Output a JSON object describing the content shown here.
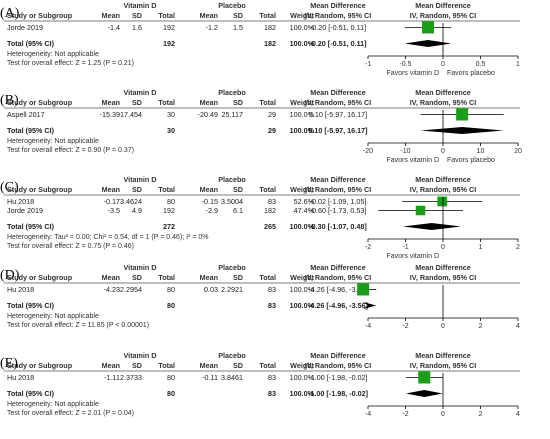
{
  "headers": {
    "vitd": "Vitamin D",
    "placebo": "Placebo",
    "md": "Mean Difference",
    "md2": "Mean Difference",
    "study": "Study or Subgroup",
    "mean": "Mean",
    "sd": "SD",
    "total": "Total",
    "weight": "Weight",
    "ci": "IV, Random, 95% CI",
    "ci2": "IV, Random, 95% CI"
  },
  "colors": {
    "square": "#1a9e1a",
    "diamond": "#000000",
    "green_mark": "#00b050"
  },
  "chart_data": [
    {
      "type": "forest",
      "label": "(A)",
      "studies": [
        {
          "name": "Jorde 2019",
          "vd_mean": "-1.4",
          "vd_sd": "1.6",
          "vd_total": "192",
          "pl_mean": "-1.2",
          "pl_sd": "1.5",
          "pl_total": "182",
          "weight": "100.0%",
          "ci_text": "-0.20 [-0.51, 0.11]",
          "md": -0.2,
          "lo": -0.51,
          "hi": 0.11,
          "w": 100
        }
      ],
      "total": {
        "label": "Total (95% CI)",
        "vd_total": "192",
        "pl_total": "182",
        "weight": "100.0%",
        "ci_text": "-0.20 [-0.51, 0.11]",
        "md": -0.2,
        "lo": -0.51,
        "hi": 0.11
      },
      "heterogeneity": "Heterogeneity: Not applicable",
      "overall": "Test for overall effect: Z = 1.25 (P = 0.21)",
      "axis": {
        "min": -1,
        "max": 1,
        "ticks": [
          "-1",
          "-0.5",
          "0",
          "0.5",
          "1"
        ]
      },
      "favors_left": "Favors vitamin D",
      "favors_right": "Favors placebo"
    },
    {
      "type": "forest",
      "label": "(B)",
      "studies": [
        {
          "name": "Aspell 2017",
          "vd_mean": "-15.39",
          "vd_sd": "17.454",
          "vd_total": "30",
          "pl_mean": "-20.49",
          "pl_sd": "25.117",
          "pl_total": "29",
          "weight": "100.0%",
          "ci_text": "5.10 [-5.97, 16.17]",
          "md": 5.1,
          "lo": -5.97,
          "hi": 16.17,
          "w": 100
        }
      ],
      "total": {
        "label": "Total (95% CI)",
        "vd_total": "30",
        "pl_total": "29",
        "weight": "100.0%",
        "ci_text": "5.10 [-5.97, 16.17]",
        "md": 5.1,
        "lo": -5.97,
        "hi": 16.17
      },
      "heterogeneity": "Heterogeneity: Not applicable",
      "overall": "Test for overall effect: Z = 0.90 (P = 0.37)",
      "axis": {
        "min": -20,
        "max": 20,
        "ticks": [
          "-20",
          "-10",
          "0",
          "10",
          "20"
        ]
      },
      "favors_left": "Favors vitamin D",
      "favors_right": "Favors placebo"
    },
    {
      "type": "forest",
      "label": "(C)",
      "studies": [
        {
          "name": "Hu 2018",
          "vd_mean": "-0.17",
          "vd_sd": "3.4624",
          "vd_total": "80",
          "pl_mean": "-0.15",
          "pl_sd": "3.5004",
          "pl_total": "83",
          "weight": "52.6%",
          "ci_text": "-0.02 [-1.09, 1.05]",
          "md": -0.02,
          "lo": -1.09,
          "hi": 1.05,
          "w": 52.6
        },
        {
          "name": "Jorde 2019",
          "vd_mean": "-3.5",
          "vd_sd": "4.9",
          "vd_total": "192",
          "pl_mean": "-2.9",
          "pl_sd": "6.1",
          "pl_total": "182",
          "weight": "47.4%",
          "ci_text": "-0.60 [-1.73, 0.53]",
          "md": -0.6,
          "lo": -1.73,
          "hi": 0.53,
          "w": 47.4
        }
      ],
      "total": {
        "label": "Total (95% CI)",
        "vd_total": "272",
        "pl_total": "265",
        "weight": "100.0%",
        "ci_text": "-0.30 [-1.07, 0.48]",
        "md": -0.3,
        "lo": -1.07,
        "hi": 0.48
      },
      "heterogeneity": "Heterogeneity: Tau² = 0.00; Chi² = 0.54, df = 1 (P = 0.46); I² = 0%",
      "overall": "Test for overall effect: Z = 0.75 (P = 0.46)",
      "axis": {
        "min": -2,
        "max": 2,
        "ticks": [
          "-2",
          "-1",
          "0",
          "1",
          "2"
        ]
      },
      "favors_left": "Favors vitamin D",
      "favors_right": ""
    },
    {
      "type": "forest",
      "label": "(D)",
      "studies": [
        {
          "name": "Hu 2018",
          "vd_mean": "-4.23",
          "vd_sd": "2.2954",
          "vd_total": "80",
          "pl_mean": "0.03",
          "pl_sd": "2.2921",
          "pl_total": "83",
          "weight": "100.0%",
          "ci_text": "-4.26 [-4.96, -3.56]",
          "md": -4.26,
          "lo": -4.96,
          "hi": -3.56,
          "w": 100
        }
      ],
      "total": {
        "label": "Total (95% CI)",
        "vd_total": "80",
        "pl_total": "83",
        "weight": "100.0%",
        "ci_text": "-4.26 [-4.96, -3.56]",
        "md": -4.26,
        "lo": -4.96,
        "hi": -3.56
      },
      "heterogeneity": "Heterogeneity: Not applicable",
      "overall": "Test for overall effect: Z = 11.85 (P < 0.00001)",
      "axis": {
        "min": -4,
        "max": 4,
        "ticks": [
          "-4",
          "-2",
          "0",
          "2",
          "4"
        ]
      },
      "favors_left": "",
      "favors_right": ""
    },
    {
      "type": "forest",
      "label": "(E)",
      "studies": [
        {
          "name": "Hu 2018",
          "vd_mean": "-1.11",
          "vd_sd": "2.3733",
          "vd_total": "80",
          "pl_mean": "-0.11",
          "pl_sd": "3.8461",
          "pl_total": "83",
          "weight": "100.0%",
          "ci_text": "-1.00 [-1.98, -0.02]",
          "md": -1.0,
          "lo": -1.98,
          "hi": -0.02,
          "w": 100
        }
      ],
      "total": {
        "label": "Total (95% CI)",
        "vd_total": "80",
        "pl_total": "83",
        "weight": "100.0%",
        "ci_text": "-1.00 [-1.98, -0.02]",
        "md": -1.0,
        "lo": -1.98,
        "hi": -0.02
      },
      "heterogeneity": "Heterogeneity: Not applicable",
      "overall": "Test for overall effect: Z = 2.01 (P = 0.04)",
      "axis": {
        "min": -4,
        "max": 4,
        "ticks": [
          "-4",
          "-2",
          "0",
          "2",
          "4"
        ]
      },
      "favors_left": "",
      "favors_right": ""
    }
  ]
}
